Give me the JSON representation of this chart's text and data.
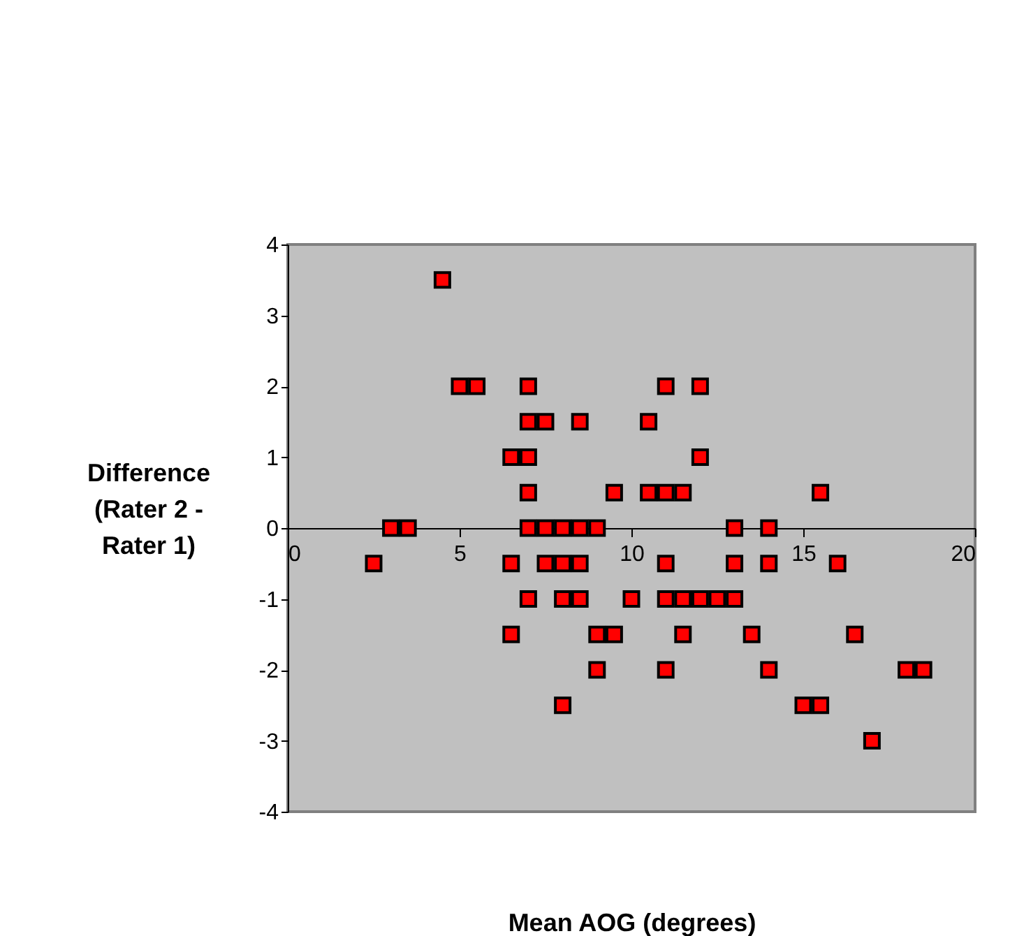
{
  "chart_data": {
    "type": "scatter",
    "xlabel": "Mean AOG (degrees)",
    "ylabel": "Difference (Rater 2 - Rater 1)",
    "xlim": [
      0,
      20
    ],
    "xticks": [
      0,
      5,
      10,
      15,
      20
    ],
    "ylim": [
      -4,
      4
    ],
    "yticks": [
      -4,
      -3,
      -2,
      -1,
      0,
      1,
      2,
      3,
      4
    ],
    "grid": false,
    "marker": "square",
    "series": [
      {
        "color": "#ff0000",
        "x": [
          4.5,
          5,
          5.5,
          7,
          11,
          12,
          7,
          7.5,
          8.5,
          10.5,
          6.5,
          7,
          12,
          7,
          9.5,
          10.5,
          11,
          11.5,
          15.5,
          3,
          3.5,
          7,
          7.5,
          8,
          8.5,
          9,
          13,
          14,
          2.5,
          6.5,
          7.5,
          8,
          8.5,
          11,
          13,
          14,
          16,
          7,
          8,
          8.5,
          10,
          11,
          11.5,
          12,
          12.5,
          13,
          6.5,
          9,
          9.5,
          11.5,
          13.5,
          16.5,
          9,
          11,
          14,
          18,
          18.5,
          8,
          15,
          15.5,
          17
        ],
        "values": [
          3.5,
          2,
          2,
          2,
          2,
          2,
          1.5,
          1.5,
          1.5,
          1.5,
          1,
          1,
          1,
          0.5,
          0.5,
          0.5,
          0.5,
          0.5,
          0.5,
          0,
          0,
          0,
          0,
          0,
          0,
          0,
          0,
          0,
          -0.5,
          -0.5,
          -0.5,
          -0.5,
          -0.5,
          -0.5,
          -0.5,
          -0.5,
          -0.5,
          -1,
          -1,
          -1,
          -1,
          -1,
          -1,
          -1,
          -1,
          -1,
          -1.5,
          -1.5,
          -1.5,
          -1.5,
          -1.5,
          -1.5,
          -2,
          -2,
          -2,
          -2,
          -2,
          -2.5,
          -2.5,
          -2.5,
          -3
        ]
      }
    ]
  }
}
